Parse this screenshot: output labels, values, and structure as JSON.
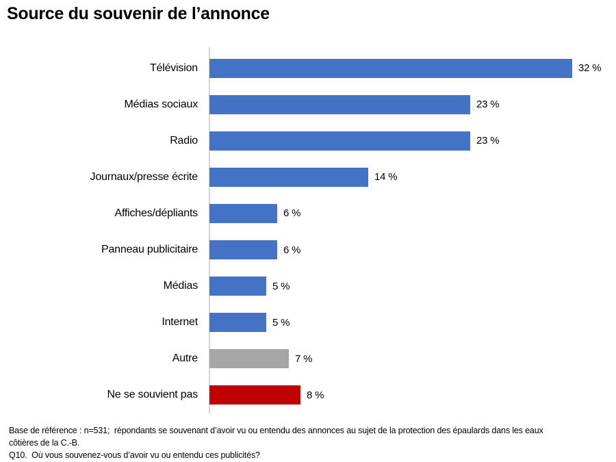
{
  "title": "Source du souvenir de l’annonce",
  "chart_data": {
    "type": "bar",
    "orientation": "horizontal",
    "title": "Source du souvenir de l’annonce",
    "categories": [
      "Télévision",
      "Médias sociaux",
      "Radio",
      "Journaux/presse écrite",
      "Affiches/dépliants",
      "Panneau publicitaire",
      "Médias",
      "Internet",
      "Autre",
      "Ne se souvient pas"
    ],
    "values": [
      32,
      23,
      23,
      14,
      6,
      6,
      5,
      5,
      7,
      8
    ],
    "value_labels": [
      "32 %",
      "23 %",
      "23 %",
      "14 %",
      "6 %",
      "6 %",
      "5 %",
      "5 %",
      "7 %",
      "8 %"
    ],
    "bar_colors": [
      "#4472C4",
      "#4472C4",
      "#4472C4",
      "#4472C4",
      "#4472C4",
      "#4472C4",
      "#4472C4",
      "#4472C4",
      "#A6A6A6",
      "#C00000"
    ],
    "xlim": [
      0,
      35
    ],
    "grid": false,
    "legend": "none",
    "data_label_position": "outside-end"
  },
  "colors": {
    "bar_blue": "#4472C4",
    "bar_gray": "#A6A6A6",
    "bar_red": "#C00000",
    "axis_line": "#D4D4D4"
  },
  "footnote": {
    "lines": [
      "Base de référence : n=531;  répondants se souvenant d’avoir vu ou entendu des annonces au sujet de la protection des épaulards dans les eaux",
      "côtières de la C.-B.",
      "Q10.  Où vous souvenez-vous d’avoir vu ou entendu ces publicités?"
    ]
  }
}
